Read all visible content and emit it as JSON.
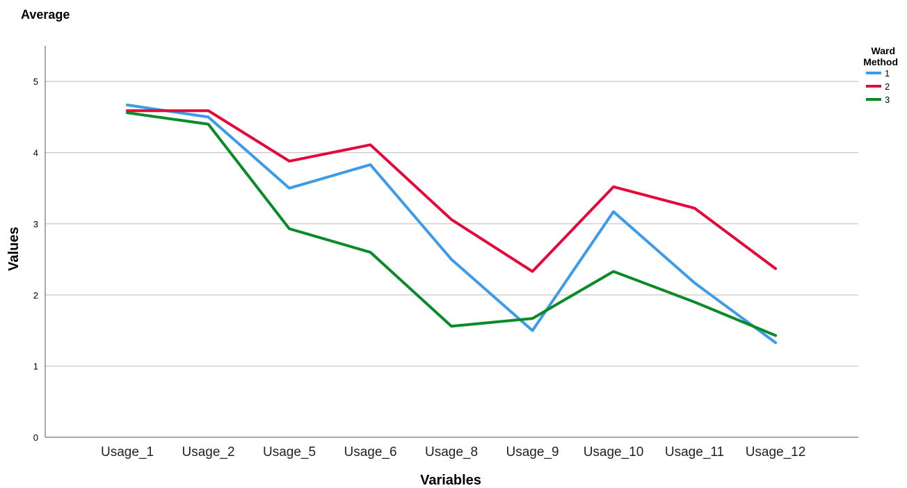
{
  "chart_data": {
    "type": "line",
    "title": "Average",
    "xlabel": "Variables",
    "ylabel": "Values",
    "ylim": [
      0,
      5.5
    ],
    "yticks": [
      0,
      1,
      2,
      3,
      4,
      5
    ],
    "grid": true,
    "legend_title": "Ward Method",
    "legend_position": "top-right",
    "categories": [
      "Usage_1",
      "Usage_2",
      "Usage_5",
      "Usage_6",
      "Usage_8",
      "Usage_9",
      "Usage_10",
      "Usage_11",
      "Usage_12"
    ],
    "series": [
      {
        "name": "1",
        "color": "#3d9be9",
        "values": [
          4.67,
          4.5,
          3.5,
          3.83,
          2.5,
          1.5,
          3.17,
          2.17,
          1.33
        ]
      },
      {
        "name": "2",
        "color": "#e4093a",
        "values": [
          4.59,
          4.59,
          3.88,
          4.11,
          3.06,
          2.33,
          3.52,
          3.22,
          2.37
        ]
      },
      {
        "name": "3",
        "color": "#0b8a2a",
        "values": [
          4.56,
          4.4,
          2.93,
          2.6,
          1.56,
          1.67,
          2.33,
          1.9,
          1.43
        ]
      }
    ]
  }
}
